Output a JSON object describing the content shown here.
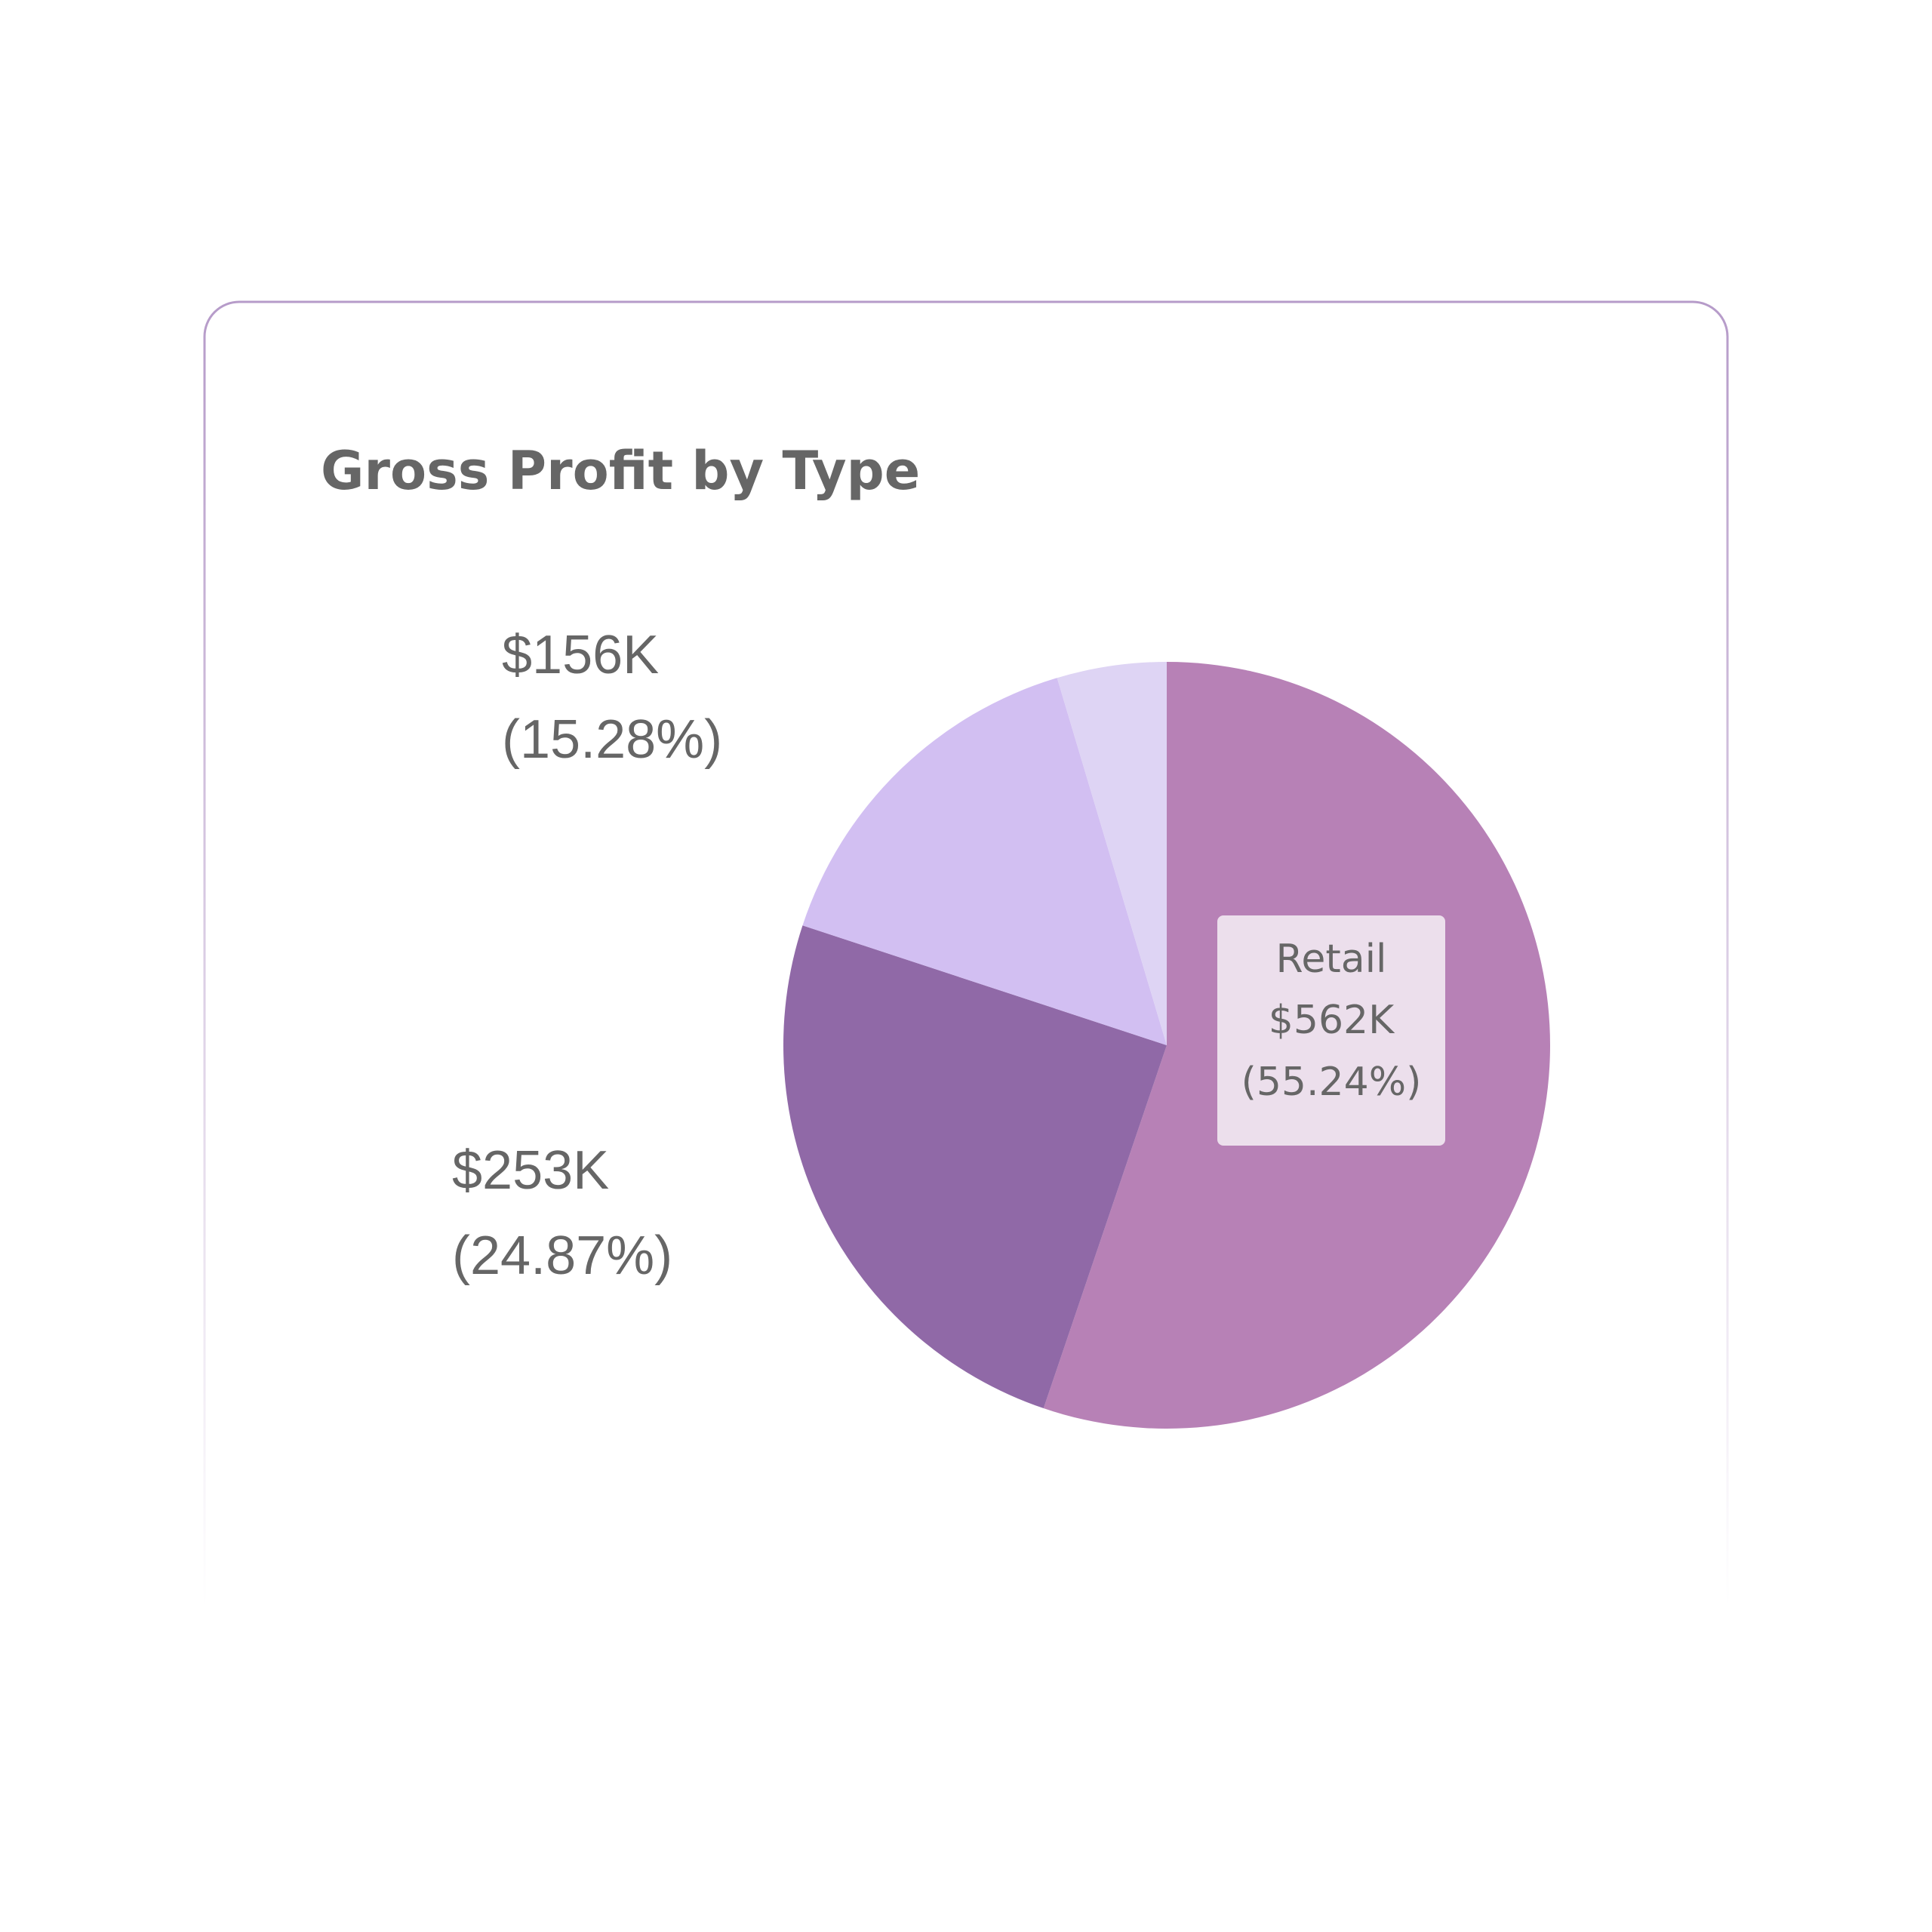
{
  "chart_data": {
    "type": "pie",
    "title": "Gross Profit by Type",
    "categories": [
      "Retail",
      null,
      null,
      null
    ],
    "values": [
      562000,
      253000,
      156000,
      47000
    ],
    "value_labels": [
      "$562K",
      "$253K",
      "$156K",
      null
    ],
    "percents": [
      55.24,
      24.87,
      15.28,
      4.61
    ],
    "percent_labels": [
      "(55.24%)",
      "(24.87%)",
      "(15.28%)",
      null
    ],
    "colors": [
      "#b781b6",
      "#9069a7",
      "#d2bff2",
      "#ded4f4"
    ]
  }
}
